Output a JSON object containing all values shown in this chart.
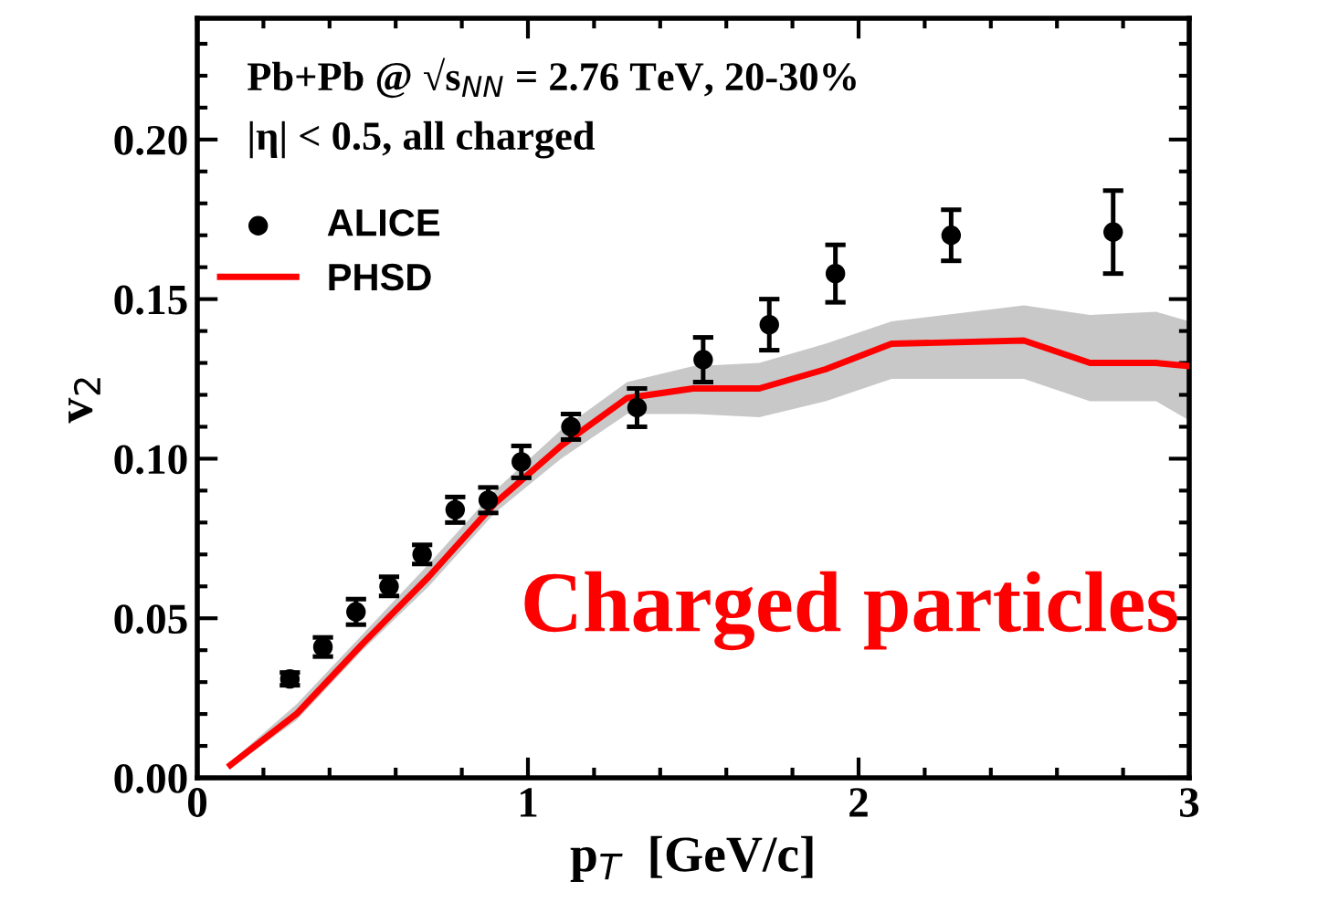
{
  "chart_data": {
    "type": "scatter",
    "xlabel": "p$_{T}$  [GeV/c]",
    "ylabel": "v$_{2}$",
    "annotations": [
      "Pb+Pb @ √s$_{NN}$ = 2.76 TeV, 20-30%",
      "|η| < 0.5, all charged",
      "Charged particles"
    ],
    "series": [
      {
        "name": "ALICE",
        "color": "#000000",
        "marker": "circle",
        "x": [
          0.28,
          0.38,
          0.48,
          0.58,
          0.68,
          0.78,
          0.88,
          0.98,
          1.13,
          1.33,
          1.53,
          1.73,
          1.93,
          2.28,
          2.77
        ],
        "values": [
          0.031,
          0.041,
          0.052,
          0.06,
          0.07,
          0.084,
          0.087,
          0.099,
          0.11,
          0.116,
          0.131,
          0.142,
          0.158,
          0.17,
          0.171
        ],
        "errors": [
          0.002,
          0.003,
          0.004,
          0.003,
          0.003,
          0.004,
          0.004,
          0.005,
          0.004,
          0.006,
          0.007,
          0.008,
          0.009,
          0.008,
          0.013
        ]
      },
      {
        "name": "PHSD",
        "type": "line",
        "color": "#ff0000",
        "marker": "none",
        "line_style": "solid",
        "x": [
          0.1,
          0.3,
          0.5,
          0.7,
          0.9,
          1.1,
          1.3,
          1.5,
          1.7,
          1.9,
          2.1,
          2.5,
          2.7,
          2.9,
          3.0
        ],
        "values": [
          0.004,
          0.02,
          0.042,
          0.063,
          0.086,
          0.104,
          0.119,
          0.122,
          0.122,
          0.128,
          0.136,
          0.137,
          0.13,
          0.13,
          0.129
        ],
        "lower": [
          0.003,
          0.018,
          0.04,
          0.06,
          0.083,
          0.1,
          0.114,
          0.114,
          0.113,
          0.118,
          0.125,
          0.125,
          0.118,
          0.118,
          0.112
        ],
        "upper": [
          0.005,
          0.023,
          0.045,
          0.067,
          0.09,
          0.109,
          0.124,
          0.129,
          0.13,
          0.136,
          0.143,
          0.148,
          0.145,
          0.146,
          0.143
        ]
      }
    ],
    "xlim": [
      0,
      3
    ],
    "ylim": [
      0,
      0.238
    ],
    "xticks": [
      0,
      1,
      2,
      3
    ],
    "yticks": [
      {
        "value": 0,
        "label": "0.00"
      },
      0.05,
      {
        "value": 0.1,
        "label": "0.10"
      },
      0.15,
      {
        "value": 0.2,
        "label": "0.20"
      }
    ],
    "grid": false,
    "legend": "top left"
  }
}
